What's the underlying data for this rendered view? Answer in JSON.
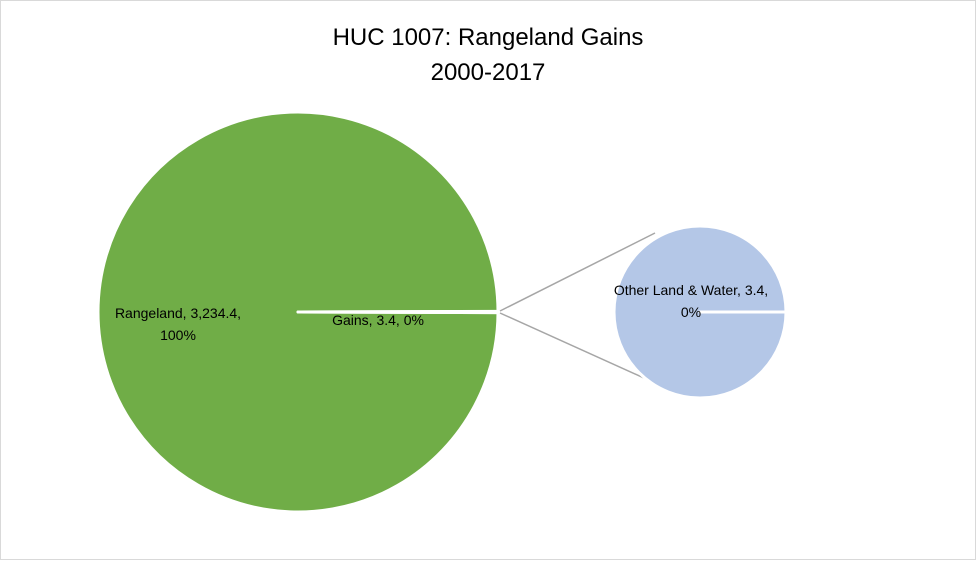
{
  "chart_data": {
    "type": "pie-of-pie",
    "title": "HUC 1007: Rangeland Gains",
    "subtitle": "2000-2017",
    "main": {
      "categories": [
        "Rangeland",
        "Gains"
      ],
      "values": [
        3234.4,
        3.4
      ],
      "value_labels": [
        "3,234.4",
        "3.4"
      ],
      "percents": [
        100,
        0
      ],
      "percent_labels": [
        "100%",
        "0%"
      ],
      "colors": [
        "#70ad47",
        "#70ad47"
      ]
    },
    "secondary": {
      "categories": [
        "Other Land & Water"
      ],
      "values": [
        3.4
      ],
      "value_labels": [
        "3.4"
      ],
      "percents": [
        0
      ],
      "percent_labels": [
        "0%"
      ],
      "colors": [
        "#b4c7e7"
      ]
    }
  }
}
